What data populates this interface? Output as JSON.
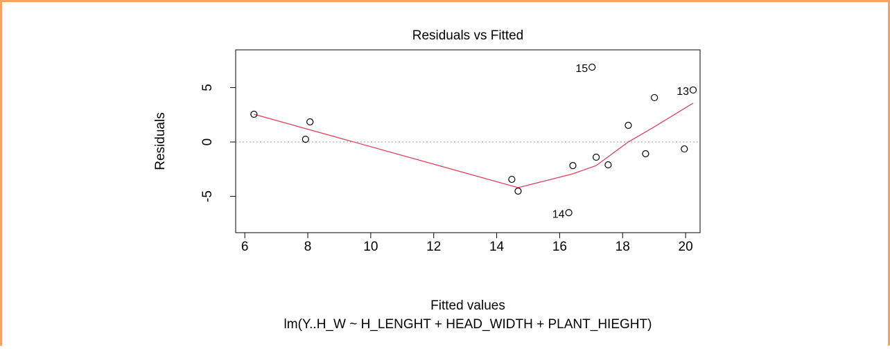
{
  "chart_data": {
    "type": "scatter",
    "title": "Residuals vs Fitted",
    "xlabel": "Fitted values",
    "ylabel": "Residuals",
    "subtitle": "lm(Y..H_W ~ H_LENGHT + HEAD_WIDTH + PLANT_HIEGHT)",
    "x": [
      6.29,
      7.93,
      8.07,
      14.48,
      14.68,
      16.42,
      16.29,
      17.03,
      17.16,
      17.54,
      18.18,
      18.73,
      19.01,
      19.96,
      20.24
    ],
    "values": [
      2.55,
      0.25,
      1.85,
      -3.44,
      -4.52,
      -2.17,
      -6.5,
      6.88,
      -1.4,
      -2.1,
      1.53,
      -1.08,
      4.08,
      -0.64,
      4.78
    ],
    "point_labels": [
      null,
      null,
      null,
      null,
      null,
      null,
      "14",
      "15",
      null,
      null,
      null,
      null,
      null,
      null,
      "13"
    ],
    "color": "#000000",
    "smooth": {
      "x": [
        6.29,
        14.68,
        16.42,
        17.16,
        18.18,
        19.01,
        20.24
      ],
      "values": [
        2.55,
        -4.2,
        -2.93,
        -2.17,
        0,
        1.4,
        3.57
      ],
      "color": "#e0405a"
    },
    "reference_line": 0,
    "xlim": [
      5.71,
      20.46
    ],
    "ylim": [
      -8.34,
      8.47
    ],
    "xticks": [
      6,
      8,
      10,
      12,
      14,
      16,
      18,
      20
    ],
    "yticks": [
      -5,
      0,
      5
    ]
  }
}
